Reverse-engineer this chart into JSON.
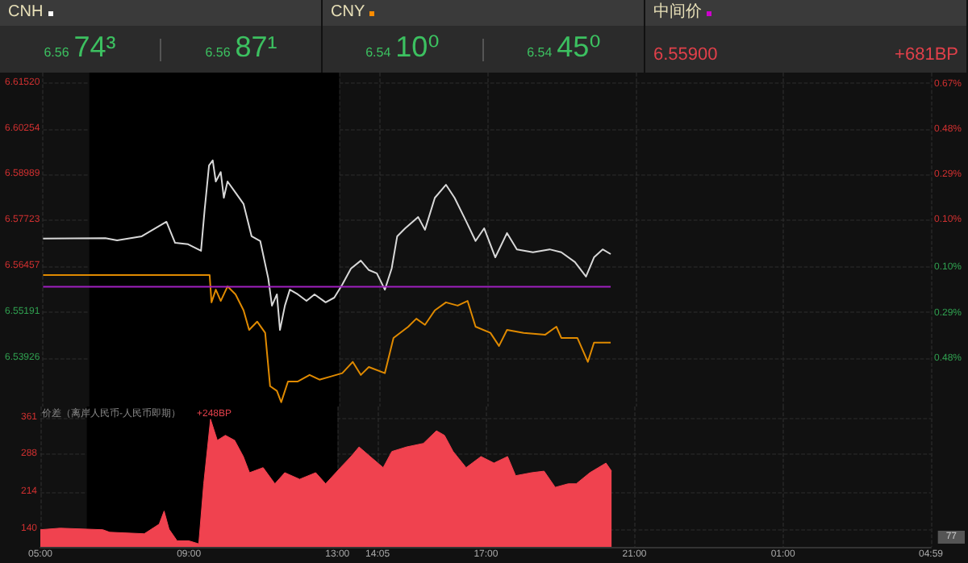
{
  "chart_data": [
    {
      "type": "other",
      "annotations": [
        "CNH",
        "6.56",
        "74³",
        "6.56",
        "87¹",
        "CNY",
        "6.54",
        "10⁰",
        "6.54",
        "45⁰",
        "中间价",
        "6.55900",
        "+681BP"
      ],
      "colors": [
        "#ffffff",
        "#ff8c00",
        "#cc00cc"
      ]
    },
    {
      "type": "line",
      "xlim": [
        "--01-01T05:00",
        "--01-02T04:59"
      ],
      "xticks": [
        {
          "value": "--01-01T05:00",
          "label": null
        },
        {
          "value": "--01-01T09:00",
          "label": null
        },
        {
          "value": "--01-01T13:00",
          "label": null
        },
        {
          "value": "--01-01T14:05",
          "label": null
        },
        {
          "value": "--01-01T17:00",
          "label": null
        },
        {
          "value": "--01-01T21:00",
          "label": null
        },
        {
          "value": "--01-02T01:00",
          "label": null
        },
        {
          "value": "--01-02T04:59",
          "label": null
        }
      ],
      "ylim": [
        6.526,
        6.618
      ],
      "yticks": [
        6.53926,
        6.55191,
        6.56457,
        6.57723,
        6.58989,
        6.60254,
        {
          "value": 6.6152,
          "label": "6.61520"
        }
      ],
      "y2lim": [
        -0.68,
        0.72
      ],
      "y2ticks": [
        {
          "value": -0.48,
          "label": "0.48%"
        },
        {
          "value": -0.29,
          "label": "0.29%"
        },
        {
          "value": -0.1,
          "label": "0.10%"
        },
        {
          "value": 0.1,
          "label": "0.10%"
        },
        {
          "value": 0.29,
          "label": "0.29%"
        },
        {
          "value": 0.48,
          "label": "0.48%"
        },
        {
          "value": 0.67,
          "label": "0.67%"
        }
      ],
      "grid": true,
      "tick_labels": "y",
      "marker": "none",
      "line_style": "solid",
      "bands": [
        {
          "axis": "x",
          "from": "--01-01T06:15",
          "to": "--01-01T13:00",
          "color": "#000000"
        }
      ],
      "series": [
        {
          "color": "#d8d8d8",
          "x": [
            "--01-01T05:00",
            "--01-01T06:41",
            "--01-01T07:00",
            "--01-01T07:40",
            "--01-01T08:20",
            "--01-01T08:34",
            "--01-01T08:55",
            "--01-01T09:16",
            "--01-01T09:22",
            "--01-01T09:29",
            "--01-01T09:35",
            "--01-01T09:40",
            "--01-01T09:48",
            "--01-01T09:53",
            "--01-01T09:59",
            "--01-01T10:12",
            "--01-01T10:25",
            "--01-01T10:38",
            "--01-01T10:52",
            "--01-01T11:05",
            "--01-01T11:11",
            "--01-01T11:19",
            "--01-01T11:24",
            "--01-01T11:32",
            "--01-01T11:40",
            "--01-01T11:53",
            "--01-01T12:07",
            "--01-01T12:20",
            "--01-01T12:38",
            "--01-01T12:52",
            "--01-01T13:05",
            "--01-01T13:19",
            "--01-01T13:35",
            "--01-01T13:48",
            "--01-01T14:01",
            "--01-01T14:14",
            "--01-01T14:25",
            "--01-01T14:34",
            "--01-01T14:47",
            "--01-01T15:08",
            "--01-01T15:19",
            "--01-01T15:35",
            "--01-01T15:53",
            "--01-01T16:07",
            "--01-01T16:25",
            "--01-01T16:41",
            "--01-01T16:55",
            "--01-01T17:13",
            "--01-01T17:32",
            "--01-01T17:48",
            "--01-01T18:14",
            "--01-01T18:41",
            "--01-01T19:00",
            "--01-01T19:22",
            "--01-01T19:40",
            "--01-01T19:53",
            "--01-01T20:07",
            "--01-01T20:20"
          ],
          "values": [
            6.5723,
            6.5724,
            6.5718,
            6.5729,
            6.5769,
            6.5711,
            6.5707,
            6.5689,
            6.5804,
            6.5924,
            6.5938,
            6.588,
            6.5906,
            6.5835,
            6.588,
            6.5849,
            6.5818,
            6.5729,
            6.5716,
            6.5613,
            6.5538,
            6.5569,
            6.5471,
            6.5538,
            6.5582,
            6.5569,
            6.5551,
            6.5569,
            6.5547,
            6.556,
            6.5596,
            6.564,
            6.5662,
            6.5636,
            6.5627,
            6.5582,
            6.564,
            6.5729,
            6.5751,
            6.5782,
            6.5747,
            6.5835,
            6.5871,
            6.5835,
            6.5773,
            6.5716,
            6.5751,
            6.5671,
            6.5738,
            6.5693,
            6.5685,
            6.5693,
            6.5685,
            6.5658,
            6.5618,
            6.5671,
            6.5693,
            6.568
          ]
        },
        {
          "color": "#e08a00",
          "x": [
            "--01-01T05:00",
            "--01-01T09:30",
            "--01-01T09:33",
            "--01-01T09:40",
            "--01-01T09:48",
            "--01-01T09:59",
            "--01-01T10:12",
            "--01-01T10:25",
            "--01-01T10:34",
            "--01-01T10:47",
            "--01-01T11:00",
            "--01-01T11:08",
            "--01-01T11:19",
            "--01-01T11:26",
            "--01-01T11:37",
            "--01-01T11:53",
            "--01-01T12:12",
            "--01-01T12:28",
            "--01-01T12:47",
            "--01-01T13:05",
            "--01-01T13:22",
            "--01-01T13:35",
            "--01-01T13:48",
            "--01-01T14:14",
            "--01-01T14:28",
            "--01-01T14:52",
            "--01-01T15:05",
            "--01-01T15:19",
            "--01-01T15:35",
            "--01-01T15:53",
            "--01-01T16:12",
            "--01-01T16:28",
            "--01-01T16:41",
            "--01-01T17:05",
            "--01-01T17:19",
            "--01-01T17:32",
            "--01-01T17:59",
            "--01-01T18:34",
            "--01-01T18:52",
            "--01-01T19:00",
            "--01-01T19:26",
            "--01-01T19:43",
            "--01-01T19:53",
            "--01-01T20:20"
          ],
          "values": [
            6.5622,
            6.5622,
            6.5547,
            6.5582,
            6.5551,
            6.5591,
            6.5569,
            6.5525,
            6.5471,
            6.5494,
            6.5463,
            6.5316,
            6.5303,
            6.5272,
            6.5329,
            6.5329,
            6.5347,
            6.5334,
            6.5343,
            6.5352,
            6.5383,
            6.5347,
            6.5369,
            6.5352,
            6.5449,
            6.548,
            6.5502,
            6.5485,
            6.5525,
            6.5547,
            6.5538,
            6.5551,
            6.548,
            6.5463,
            6.5427,
            6.5471,
            6.5463,
            6.5458,
            6.548,
            6.5449,
            6.5449,
            6.5383,
            6.5436,
            6.5436
          ]
        },
        {
          "color": "#a020c0",
          "x": [
            "--01-01T05:00",
            "--01-01T20:20"
          ],
          "values": [
            6.559,
            6.559
          ]
        }
      ]
    },
    {
      "type": "area",
      "xlim": [
        "--01-01T05:00",
        "--01-02T04:59"
      ],
      "xticks": [
        {
          "value": "--01-01T05:00",
          "label": "05:00"
        },
        {
          "value": "--01-01T09:00",
          "label": "09:00"
        },
        {
          "value": "--01-01T13:00",
          "label": "13:00"
        },
        {
          "value": "--01-01T14:05",
          "label": "14:05"
        },
        {
          "value": "--01-01T17:00",
          "label": "17:00"
        },
        {
          "value": "--01-01T21:00",
          "label": "21:00"
        },
        {
          "value": "--01-02T01:00",
          "label": "01:00"
        },
        {
          "value": "--01-02T04:59",
          "label": "04:59"
        }
      ],
      "ylim": [
        105,
        383
      ],
      "yticks": [
        140,
        214,
        288,
        361
      ],
      "grid": true,
      "marker": "none",
      "bands": [
        {
          "axis": "x",
          "from": "--01-01T06:15",
          "to": "--01-01T13:00",
          "color": "#000000"
        }
      ],
      "annotations": [
        "价差（离岸人民币-人民币即期）",
        "+248BP",
        "77"
      ],
      "series": [
        {
          "color": "#f0424f",
          "x": [
            "--01-01T05:00",
            "--01-01T05:32",
            "--01-01T06:41",
            "--01-01T06:52",
            "--01-01T07:48",
            "--01-01T08:12",
            "--01-01T08:20",
            "--01-01T08:28",
            "--01-01T08:41",
            "--01-01T09:00",
            "--01-01T09:16",
            "--01-01T09:24",
            "--01-01T09:35",
            "--01-01T09:46",
            "--01-01T09:59",
            "--01-01T10:14",
            "--01-01T10:28",
            "--01-01T10:38",
            "--01-01T11:00",
            "--01-01T11:19",
            "--01-01T11:35",
            "--01-01T11:59",
            "--01-01T12:25",
            "--01-01T12:41",
            "--01-01T13:05",
            "--01-01T13:22",
            "--01-01T13:35",
            "--01-01T13:53",
            "--01-01T14:14",
            "--01-01T14:28",
            "--01-01T14:52",
            "--01-01T15:19",
            "--01-01T15:40",
            "--01-01T15:53",
            "--01-01T16:07",
            "--01-01T16:28",
            "--01-01T16:52",
            "--01-01T17:13",
            "--01-01T17:35",
            "--01-01T17:48",
            "--01-01T18:14",
            "--01-01T18:34",
            "--01-01T18:52",
            "--01-01T19:13",
            "--01-01T19:26",
            "--01-01T19:48",
            "--01-01T20:14",
            "--01-01T20:23"
          ],
          "values": [
            139,
            142,
            139,
            134,
            131,
            150,
            176,
            140,
            117,
            117,
            111,
            230,
            358,
            316,
            326,
            316,
            284,
            252,
            262,
            230,
            252,
            239,
            252,
            230,
            262,
            284,
            303,
            284,
            262,
            294,
            303,
            310,
            335,
            326,
            294,
            262,
            284,
            271,
            284,
            246,
            252,
            255,
            223,
            230,
            230,
            252,
            271,
            255
          ]
        }
      ]
    }
  ]
}
